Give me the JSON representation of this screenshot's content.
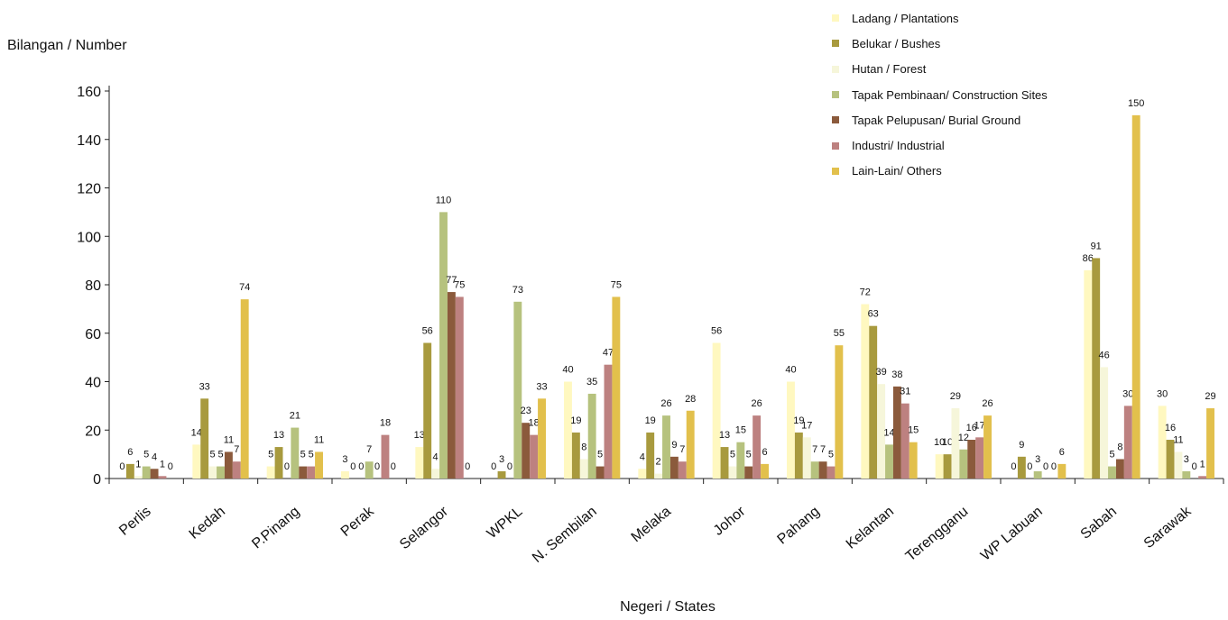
{
  "chart_data": {
    "type": "bar",
    "ylabel": "Bilangan / Number",
    "xlabel": "Negeri / States",
    "ylim": [
      0,
      160
    ],
    "yticks": [
      0,
      20,
      40,
      60,
      80,
      100,
      120,
      140,
      160
    ],
    "categories": [
      "Perlis",
      "Kedah",
      "P.Pinang",
      "Perak",
      "Selangor",
      "WPKL",
      "N. Sembilan",
      "Melaka",
      "Johor",
      "Pahang",
      "Kelantan",
      "Terengganu",
      "WP Labuan",
      "Sabah",
      "Sarawak"
    ],
    "series": [
      {
        "name": "Ladang / Plantations",
        "color": "#FFF8C0",
        "values": [
          0,
          14,
          5,
          3,
          13,
          0,
          40,
          4,
          56,
          40,
          72,
          10,
          0,
          86,
          30
        ]
      },
      {
        "name": "Belukar / Bushes",
        "color": "#A89A3E",
        "values": [
          6,
          33,
          13,
          0,
          56,
          3,
          19,
          19,
          13,
          19,
          63,
          10,
          9,
          91,
          16
        ]
      },
      {
        "name": "Hutan / Forest",
        "color": "#F6F6DA",
        "values": [
          1,
          5,
          0,
          0,
          4,
          0,
          8,
          2,
          5,
          17,
          39,
          29,
          0,
          46,
          11
        ]
      },
      {
        "name": "Tapak Pembinaan/ Construction Sites",
        "color": "#B6C27E",
        "values": [
          5,
          5,
          21,
          7,
          110,
          73,
          35,
          26,
          15,
          7,
          14,
          12,
          3,
          5,
          3
        ]
      },
      {
        "name": "Tapak Pelupusan/ Burial Ground",
        "color": "#8B5A3C",
        "values": [
          4,
          11,
          5,
          0,
          77,
          23,
          5,
          9,
          5,
          7,
          38,
          16,
          0,
          8,
          0
        ]
      },
      {
        "name": "Industri/ Industrial",
        "color": "#BD8180",
        "values": [
          1,
          7,
          5,
          18,
          75,
          18,
          47,
          7,
          26,
          5,
          31,
          17,
          0,
          30,
          1
        ]
      },
      {
        "name": "Lain-Lain/ Others",
        "color": "#E2C04C",
        "values": [
          0,
          74,
          11,
          0,
          0,
          33,
          75,
          28,
          6,
          55,
          15,
          26,
          6,
          150,
          29
        ]
      }
    ]
  }
}
